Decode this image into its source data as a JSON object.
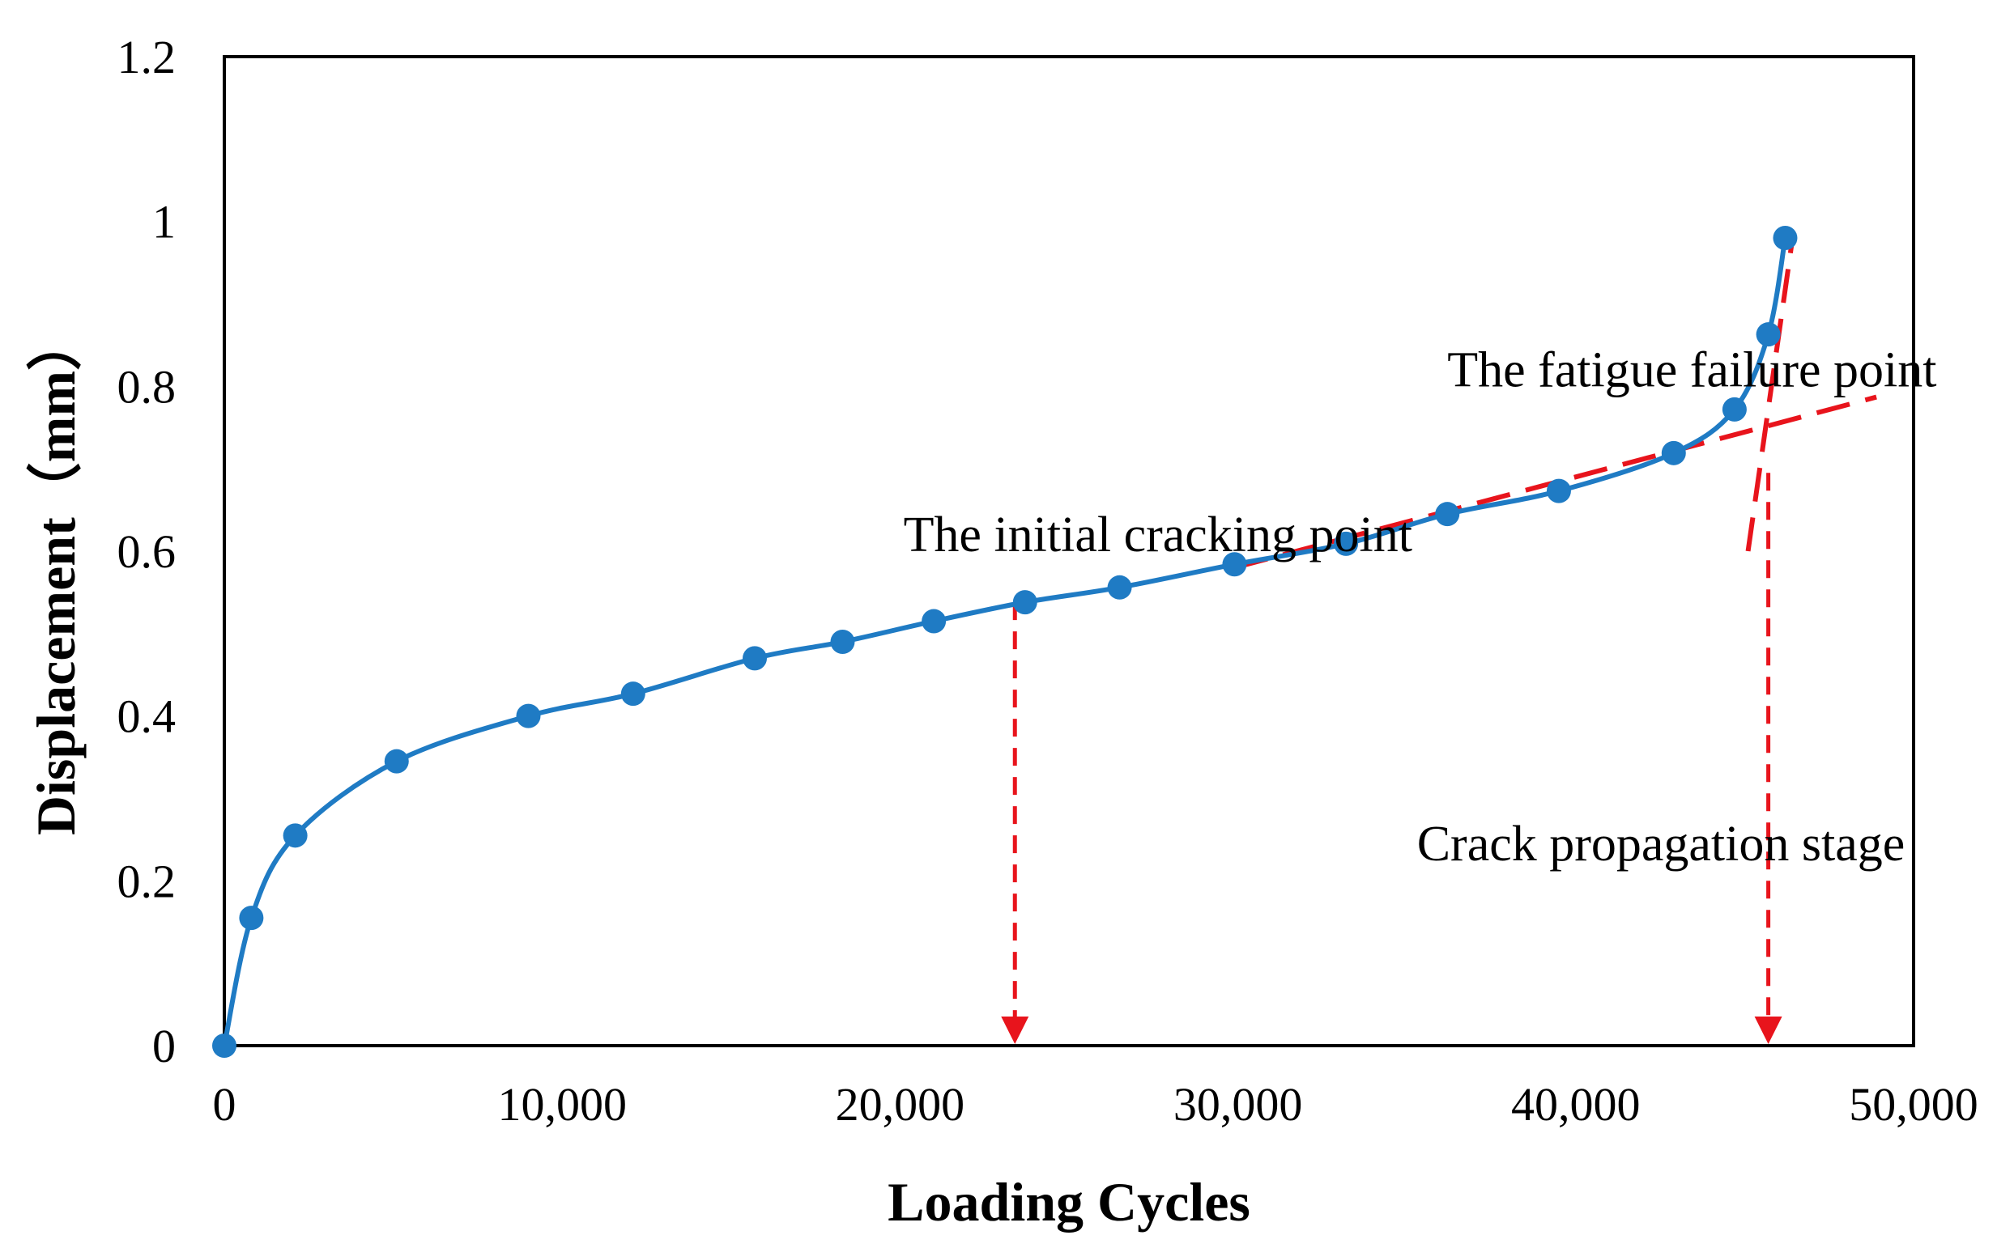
{
  "chart_data": {
    "type": "line",
    "title": "",
    "xlabel": "Loading Cycles",
    "ylabel": "Displacement（mm）",
    "xlim": [
      0,
      50000
    ],
    "ylim": [
      0,
      1.2
    ],
    "x_ticks": [
      0,
      10000,
      20000,
      30000,
      40000,
      50000
    ],
    "x_tick_labels": [
      "0",
      "10,000",
      "20,000",
      "30,000",
      "40,000",
      "50,000"
    ],
    "y_ticks": [
      0,
      0.2,
      0.4,
      0.6,
      0.8,
      1.0,
      1.2
    ],
    "y_tick_labels": [
      "0",
      "0.2",
      "0.4",
      "0.6",
      "0.8",
      "1",
      "1.2"
    ],
    "grid": false,
    "series": [
      {
        "name": "Displacement",
        "color": "#1f7bc4",
        "x": [
          0,
          800,
          2100,
          5100,
          9000,
          12100,
          15700,
          18300,
          21000,
          23700,
          26500,
          29900,
          33200,
          36200,
          39500,
          42900,
          44700,
          45700,
          46200
        ],
        "y": [
          0,
          0.155,
          0.255,
          0.345,
          0.4,
          0.427,
          0.47,
          0.49,
          0.515,
          0.538,
          0.556,
          0.584,
          0.609,
          0.645,
          0.673,
          0.719,
          0.772,
          0.863,
          0.98
        ]
      }
    ],
    "fit_lines": [
      {
        "name": "crack-propagation-trend",
        "color": "#e8141c",
        "x": [
          29900,
          48900
        ],
        "y": [
          0.58,
          0.787
        ]
      },
      {
        "name": "failure-trend",
        "color": "#e8141c",
        "x": [
          45100,
          46400
        ],
        "y": [
          0.6,
          0.975
        ]
      }
    ],
    "vertical_markers": [
      {
        "name": "initial-cracking-arrow",
        "x": 23400,
        "y_top": 0.538,
        "color": "#e8141c"
      },
      {
        "name": "fatigue-failure-arrow",
        "x": 45700,
        "y_top": 0.695,
        "color": "#e8141c"
      }
    ],
    "annotations": [
      {
        "name": "initial-cracking-label",
        "text": "The initial cracking point",
        "x": 20100,
        "y": 0.6
      },
      {
        "name": "fatigue-failure-label",
        "text": "The fatigue failure point",
        "x": 36200,
        "y": 0.8
      },
      {
        "name": "crack-stage-label",
        "text": "Crack propagation stage",
        "x": 35300,
        "y": 0.225
      }
    ]
  }
}
